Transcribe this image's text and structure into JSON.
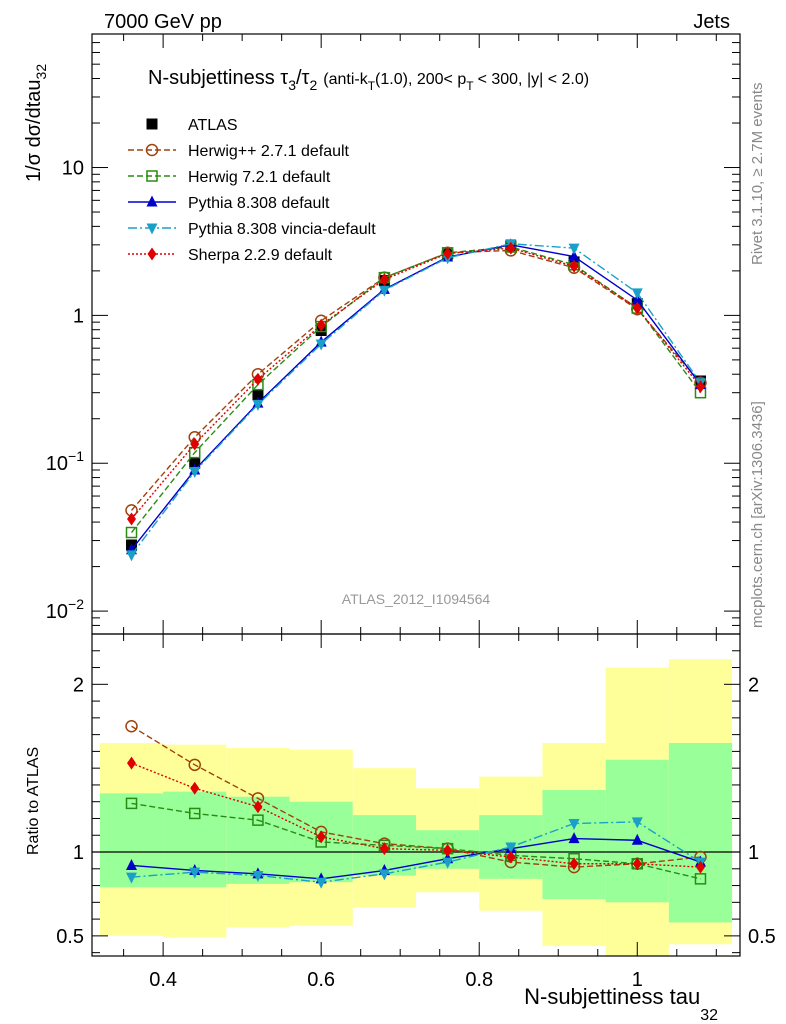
{
  "header": {
    "left": "7000 GeV pp",
    "right": "Jets"
  },
  "side": {
    "rivet": "Rivet 3.1.10, ≥ 2.7M events",
    "mcplots": "mcplots.cern.ch [arXiv:1306.3436]"
  },
  "analysis_id": "ATLAS_2012_I1094564",
  "plot_title": {
    "main": "N-subjettiness τ",
    "main_sub": "3",
    "slash": "/τ",
    "slash_sub": "2",
    "cond_1": "(anti-k",
    "cond_1_sub": "T",
    "cond_2": "(1.0), 200< p",
    "cond_2_sub": "T",
    "cond_3": "< 300, |y| < 2.0)"
  },
  "ylabel_main": {
    "text": "1/σ dσ/dtau",
    "sub": "32"
  },
  "ylabel_ratio": "Ratio to ATLAS",
  "xlabel": {
    "text": "N-subjettiness tau",
    "sub": "32"
  },
  "colors": {
    "band_yellow": "#ffff99",
    "band_green": "#99ff99",
    "atlas": "#000000",
    "herwigpp": "#a0410d",
    "herwig7": "#2a8b14",
    "pythia": "#0000cc",
    "vincia": "#1aa0c8",
    "sherpa": "#e00000"
  },
  "chart_data": [
    {
      "type": "line",
      "scale_y": "log",
      "xlim": [
        0.31,
        1.13
      ],
      "ylim": [
        0.007,
        80
      ],
      "xticks": [
        "0.4",
        "0.6",
        "0.8",
        "1"
      ],
      "yticks": [
        {
          "base": "10",
          "exp": "−2",
          "value": 0.01
        },
        {
          "base": "10",
          "exp": "−1",
          "value": 0.1
        },
        {
          "base": "1",
          "exp": "",
          "value": 1
        },
        {
          "base": "10",
          "exp": "",
          "value": 10
        }
      ],
      "x": [
        0.36,
        0.44,
        0.52,
        0.6,
        0.68,
        0.76,
        0.84,
        0.92,
        1.0,
        1.08
      ],
      "series": [
        {
          "name": "ATLAS",
          "key": "atlas",
          "marker": "square-filled",
          "dash": "none",
          "values": [
            0.028,
            0.1,
            0.29,
            0.79,
            1.72,
            2.6,
            2.95,
            2.3,
            1.2,
            0.36
          ]
        },
        {
          "name": "Herwig++ 2.7.1 default",
          "key": "herwigpp",
          "marker": "circle-open",
          "dash": "6,3",
          "values": [
            0.048,
            0.15,
            0.4,
            0.92,
            1.8,
            2.65,
            2.75,
            2.1,
            1.1,
            0.35
          ]
        },
        {
          "name": "Herwig 7.2.1 default",
          "key": "herwig7",
          "marker": "square-open",
          "dash": "6,3",
          "values": [
            0.034,
            0.118,
            0.34,
            0.84,
            1.8,
            2.65,
            2.9,
            2.2,
            1.12,
            0.3
          ]
        },
        {
          "name": "Pythia 8.308 default",
          "key": "pythia",
          "marker": "triangle-up",
          "dash": "none",
          "values": [
            0.026,
            0.09,
            0.255,
            0.66,
            1.5,
            2.48,
            3.0,
            2.5,
            1.27,
            0.34
          ]
        },
        {
          "name": "Pythia 8.308 vincia-default",
          "key": "vincia",
          "marker": "triangle-down",
          "dash": "9,3,2,3",
          "values": [
            0.024,
            0.088,
            0.25,
            0.64,
            1.48,
            2.45,
            3.05,
            2.85,
            1.42,
            0.35
          ]
        },
        {
          "name": "Sherpa 2.2.9 default",
          "key": "sherpa",
          "marker": "diamond",
          "dash": "2,2",
          "values": [
            0.042,
            0.135,
            0.37,
            0.86,
            1.75,
            2.62,
            2.85,
            2.15,
            1.12,
            0.33
          ]
        }
      ]
    },
    {
      "type": "line",
      "ylabel": "Ratio to ATLAS",
      "ylim": [
        0.38,
        2.3
      ],
      "yticks": [
        "0.5",
        "1",
        "2"
      ],
      "ytick_values": [
        0.5,
        1,
        2
      ],
      "reference_line": 1,
      "bins": [
        [
          0.32,
          0.4
        ],
        [
          0.4,
          0.48
        ],
        [
          0.48,
          0.56
        ],
        [
          0.56,
          0.64
        ],
        [
          0.64,
          0.72
        ],
        [
          0.72,
          0.8
        ],
        [
          0.8,
          0.88
        ],
        [
          0.88,
          0.96
        ],
        [
          0.96,
          1.04
        ],
        [
          1.04,
          1.12
        ]
      ],
      "band_yellow": [
        [
          0.5,
          1.65
        ],
        [
          0.49,
          1.64
        ],
        [
          0.55,
          1.62
        ],
        [
          0.56,
          1.61
        ],
        [
          0.67,
          1.5
        ],
        [
          0.76,
          1.38
        ],
        [
          0.65,
          1.45
        ],
        [
          0.44,
          1.65
        ],
        [
          0.38,
          2.1
        ],
        [
          0.45,
          2.15
        ]
      ],
      "band_green": [
        [
          0.79,
          1.35
        ],
        [
          0.79,
          1.36
        ],
        [
          0.81,
          1.33
        ],
        [
          0.82,
          1.3
        ],
        [
          0.86,
          1.22
        ],
        [
          0.9,
          1.13
        ],
        [
          0.84,
          1.22
        ],
        [
          0.72,
          1.37
        ],
        [
          0.7,
          1.55
        ],
        [
          0.58,
          1.65
        ]
      ],
      "x": [
        0.36,
        0.44,
        0.52,
        0.6,
        0.68,
        0.76,
        0.84,
        0.92,
        1.0,
        1.08
      ],
      "series": [
        {
          "name": "Herwig++ 2.7.1 default",
          "key": "herwigpp",
          "marker": "circle-open",
          "dash": "6,3",
          "values": [
            1.75,
            1.52,
            1.32,
            1.12,
            1.05,
            1.02,
            0.94,
            0.91,
            0.93,
            0.97
          ]
        },
        {
          "name": "Herwig 7.2.1 default",
          "key": "herwig7",
          "marker": "square-open",
          "dash": "6,3",
          "values": [
            1.29,
            1.23,
            1.19,
            1.06,
            1.04,
            1.02,
            0.98,
            0.96,
            0.93,
            0.84
          ]
        },
        {
          "name": "Pythia 8.308 default",
          "key": "pythia",
          "marker": "triangle-up",
          "dash": "none",
          "values": [
            0.92,
            0.89,
            0.87,
            0.84,
            0.89,
            0.96,
            1.02,
            1.08,
            1.07,
            0.94
          ]
        },
        {
          "name": "Pythia 8.308 vincia-default",
          "key": "vincia",
          "marker": "triangle-down",
          "dash": "9,3,2,3",
          "values": [
            0.85,
            0.88,
            0.86,
            0.82,
            0.87,
            0.94,
            1.03,
            1.17,
            1.18,
            0.94
          ]
        },
        {
          "name": "Sherpa 2.2.9 default",
          "key": "sherpa",
          "marker": "diamond",
          "dash": "2,2",
          "values": [
            1.53,
            1.38,
            1.27,
            1.09,
            1.02,
            1.01,
            0.97,
            0.93,
            0.93,
            0.91
          ]
        }
      ]
    }
  ]
}
